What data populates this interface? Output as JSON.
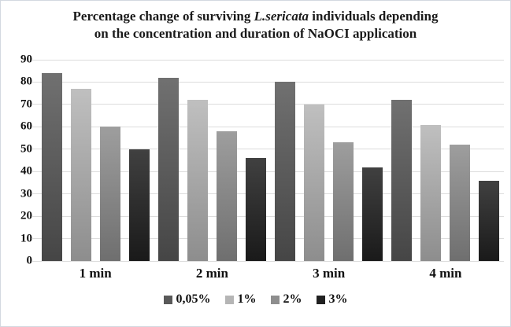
{
  "title": {
    "line1_pre": "Percentage change of surviving ",
    "line1_italic": "L.sericata",
    "line1_post": " individuals depending",
    "line2": "on the concentration and duration of NaOCI application"
  },
  "chart_data": {
    "type": "bar",
    "title": "Percentage change of surviving L.sericata individuals depending on the concentration and duration of NaOCI application",
    "categories": [
      "1 min",
      "2 min",
      "3 min",
      "4 min"
    ],
    "series": [
      {
        "name": "0,05%",
        "color": "#595959",
        "values": [
          84,
          82,
          80,
          72
        ]
      },
      {
        "name": "1%",
        "color": "#b5b5b5",
        "values": [
          77,
          72,
          70,
          61
        ]
      },
      {
        "name": "2%",
        "color": "#8e8e8e",
        "values": [
          60,
          58,
          53,
          52
        ]
      },
      {
        "name": "3%",
        "color": "#212121",
        "values": [
          50,
          46,
          42,
          36
        ]
      }
    ],
    "ylim": [
      0,
      90
    ],
    "ytick_step": 10,
    "grid": true,
    "gridline_color": "#dcdcdc",
    "legend_position": "bottom",
    "xlabel": "",
    "ylabel": ""
  }
}
